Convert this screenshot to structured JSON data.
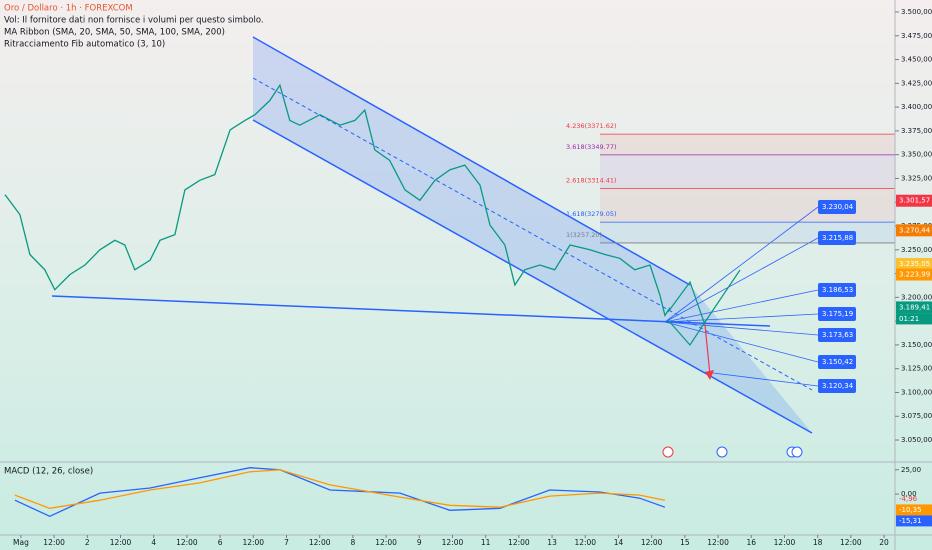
{
  "chart_data": [
    {
      "type": "line",
      "title": "Oro / Dollaro · 1h · FOREXCOM",
      "indicators": [
        "Vol: Il fornitore dati non fornisce i volumi per questo simbolo.",
        "MA Ribbon (SMA, 20, SMA, 50, SMA, 100, SMA, 200)",
        "Ritracciamento Fib automatico (3, 10)"
      ],
      "x": [
        -0.48,
        -0.03,
        0.27,
        0.72,
        1.02,
        1.48,
        1.93,
        2.38,
        2.83,
        3.13,
        3.43,
        3.89,
        4.19,
        4.64,
        4.94,
        5.39,
        5.84,
        6.3,
        6.75,
        7.05,
        7.5,
        7.8,
        8.1,
        8.4,
        9.01,
        9.61,
        10.06,
        10.36,
        10.66,
        11.11,
        11.57,
        12.02,
        12.47,
        12.92,
        13.37,
        13.83,
        14.13,
        14.58,
        14.88,
        15.18,
        15.63,
        16.08,
        16.54,
        17.14,
        17.59,
        18.04,
        18.49,
        18.95,
        19.25,
        19.4,
        19.55
      ],
      "series": [
        {
          "color": "#089981",
          "values": [
            3308,
            3287,
            3245,
            3229,
            3208,
            3224,
            3234,
            3250,
            3260,
            3255,
            3229,
            3239,
            3260,
            3266,
            3313,
            3323,
            3329,
            3376,
            3386,
            3392,
            3407,
            3423,
            3386,
            3381,
            3392,
            3381,
            3386,
            3397,
            3355,
            3344,
            3313,
            3302,
            3323,
            3334,
            3339,
            3318,
            3276,
            3255,
            3213,
            3229,
            3234,
            3229,
            3255,
            3250,
            3245,
            3241,
            3229,
            3234,
            3202,
            3181,
            3189
          ]
        }
      ],
      "xlim": [
        -0.63,
        26.33
      ],
      "xticks": [
        {
          "value": 0,
          "label": "Mag"
        },
        {
          "value": 1,
          "label": "12:00"
        },
        2,
        {
          "value": 3,
          "label": "12:00"
        },
        4,
        {
          "value": 5,
          "label": "12:00"
        },
        6,
        {
          "value": 7,
          "label": "12:00"
        },
        {
          "value": 8,
          "label": "7"
        },
        {
          "value": 9,
          "label": "12:00"
        },
        {
          "value": 10,
          "label": "8"
        },
        {
          "value": 11,
          "label": "12:00"
        },
        {
          "value": 12,
          "label": "9"
        },
        {
          "value": 13,
          "label": "12:00"
        },
        {
          "value": 14,
          "label": "11"
        },
        {
          "value": 15,
          "label": "12:00"
        },
        {
          "value": 16,
          "label": "13"
        },
        {
          "value": 17,
          "label": "12:00"
        },
        {
          "value": 18,
          "label": "14"
        },
        {
          "value": 19,
          "label": "12:00"
        },
        {
          "value": 20,
          "label": "15"
        },
        {
          "value": 21,
          "label": "12:00"
        },
        {
          "value": 22,
          "label": "16"
        },
        {
          "value": 23,
          "label": "12:00"
        },
        {
          "value": 24,
          "label": "18"
        },
        {
          "value": 25,
          "label": "12:00"
        },
        {
          "value": 26,
          "label": "20"
        }
      ],
      "ylim": [
        3026.9,
        3512.6
      ],
      "yticks": [
        {
          "value": 3500,
          "label": "3.500,00"
        },
        {
          "value": 3475,
          "label": "3.475,00"
        },
        {
          "value": 3450,
          "label": "3.450,00"
        },
        {
          "value": 3425,
          "label": "3.425,00"
        },
        {
          "value": 3400,
          "label": "3.400,00"
        },
        {
          "value": 3375,
          "label": "3.375,00"
        },
        {
          "value": 3350,
          "label": "3.350,00"
        },
        {
          "value": 3325,
          "label": "3.325,00"
        },
        {
          "value": 3300,
          "label": "3.300,00"
        },
        {
          "value": 3275,
          "label": "3.275,00"
        },
        {
          "value": 3250,
          "label": "3.250,00"
        },
        {
          "value": 3225,
          "label": "3.225,00"
        },
        {
          "value": 3200,
          "label": "3.200,00"
        },
        {
          "value": 3175,
          "label": "3.175,00"
        },
        {
          "value": 3150,
          "label": "3.150,00"
        },
        {
          "value": 3125,
          "label": "3.125,00"
        },
        {
          "value": 3100,
          "label": "3.100,00"
        },
        {
          "value": 3075,
          "label": "3.075,00"
        },
        {
          "value": 3050,
          "label": "3.050,00"
        }
      ],
      "grid": false,
      "fib_levels": [
        {
          "value": 3371.62,
          "label": "4.236(3371.62)",
          "color": "#f23645"
        },
        {
          "value": 3349.77,
          "label": "3.618(3349.77)",
          "color": "#9c27b0"
        },
        {
          "value": 3314.41,
          "label": "2.618(3314.41)",
          "color": "#f23645"
        },
        {
          "value": 3279.05,
          "label": "1.618(3279.05)",
          "color": "#2962ff"
        },
        {
          "value": 3257.2,
          "label": "1(3257.20)",
          "color": "#787b86"
        }
      ],
      "price_tags": [
        {
          "value": 3301.57,
          "label": "3.301,57",
          "color": "#f23645"
        },
        {
          "value": 3270.44,
          "label": "3.270,44",
          "color": "#f57c00"
        },
        {
          "value": 3235.05,
          "label": "3.235,05",
          "color": "#fbc02d"
        },
        {
          "value": 3223.99,
          "label": "3.223,99",
          "color": "#ff9800"
        },
        {
          "value": 3189.41,
          "label": "3.189,41",
          "color": "#089981"
        }
      ],
      "countdown": "01:21",
      "targets": [
        "3.230,04",
        "3.215,88",
        "3.186,53",
        "3.175,19",
        "3.173,63",
        "3.150,42",
        "3.120,34"
      ]
    },
    {
      "type": "line",
      "title": "MACD (12, 26, close)",
      "x": [
        -0.18,
        0.87,
        2.38,
        3.89,
        5.39,
        6.9,
        7.8,
        9.31,
        11.42,
        12.92,
        14.43,
        15.93,
        17.44,
        18.64,
        19.4
      ],
      "series": [
        {
          "color": "#2962ff",
          "values": [
            -6.3,
            -22.9,
            1.0,
            6.3,
            16.7,
            27.1,
            25,
            4.2,
            1.0,
            -16.7,
            -14.6,
            4.2,
            2.1,
            -4.2,
            -13.5
          ]
        },
        {
          "color": "#ff9800",
          "values": [
            -1.0,
            -14.6,
            -6.3,
            4.2,
            11.5,
            22.9,
            25,
            9.4,
            -3.1,
            -11.5,
            -13.5,
            -2.1,
            1.0,
            -1.0,
            -6.3
          ]
        }
      ],
      "xlim": [
        -0.63,
        26.33
      ],
      "ylim": [
        -39,
        33
      ],
      "yticks": [
        {
          "value": 25,
          "label": "25,00"
        },
        {
          "value": 0,
          "label": "0,00"
        }
      ],
      "value_tags": [
        {
          "value": -4.96,
          "label": "-4,96",
          "color": "#f23645"
        },
        {
          "value": -10.35,
          "label": "-10,35",
          "color": "#ff9800"
        },
        {
          "value": -15.31,
          "label": "-15,31",
          "color": "#2962ff"
        }
      ]
    }
  ]
}
